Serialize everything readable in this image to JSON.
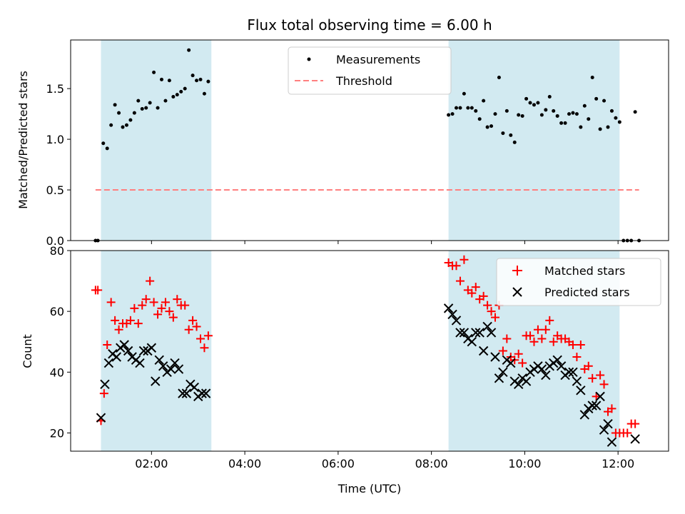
{
  "chart_data": {
    "title": "Flux total observing time = 6.00 h",
    "xlabel": "Time (UTC)",
    "xticks": [
      "02:00",
      "04:00",
      "06:00",
      "08:00",
      "10:00",
      "12:00"
    ],
    "xlim": [
      "00:16",
      "13:05"
    ],
    "observing_windows": [
      [
        "00:55",
        "03:17"
      ],
      [
        "08:22",
        "12:02"
      ]
    ],
    "colors": {
      "window": "#add8e6",
      "measurements": "#000000",
      "threshold": "#ff7f7f",
      "matched": "#ff0000",
      "predicted": "#000000"
    },
    "panels": [
      {
        "type": "scatter",
        "ylabel": "Matched/Predicted stars",
        "ylim": [
          0.0,
          1.98
        ],
        "yticks": [
          "0.0",
          "0.5",
          "1.0",
          "1.5"
        ],
        "legend_position": "top-center",
        "legend": [
          "Measurements",
          "Threshold"
        ],
        "threshold": {
          "value": 0.5,
          "x_range": [
            "00:48",
            "12:27"
          ]
        },
        "measurements": [
          [
            "00:48",
            0.0
          ],
          [
            "00:51",
            0.0
          ],
          [
            "00:58",
            0.96
          ],
          [
            "01:03",
            0.91
          ],
          [
            "01:08",
            1.14
          ],
          [
            "01:13",
            1.34
          ],
          [
            "01:18",
            1.26
          ],
          [
            "01:23",
            1.12
          ],
          [
            "01:28",
            1.14
          ],
          [
            "01:33",
            1.19
          ],
          [
            "01:38",
            1.26
          ],
          [
            "01:43",
            1.38
          ],
          [
            "01:48",
            1.3
          ],
          [
            "01:53",
            1.31
          ],
          [
            "01:58",
            1.36
          ],
          [
            "02:03",
            1.66
          ],
          [
            "02:08",
            1.31
          ],
          [
            "02:13",
            1.59
          ],
          [
            "02:18",
            1.38
          ],
          [
            "02:23",
            1.58
          ],
          [
            "02:28",
            1.42
          ],
          [
            "02:33",
            1.44
          ],
          [
            "02:38",
            1.47
          ],
          [
            "02:43",
            1.5
          ],
          [
            "02:48",
            1.88
          ],
          [
            "02:53",
            1.63
          ],
          [
            "02:58",
            1.58
          ],
          [
            "03:03",
            1.59
          ],
          [
            "03:08",
            1.45
          ],
          [
            "03:13",
            1.57
          ],
          [
            "08:22",
            1.24
          ],
          [
            "08:27",
            1.25
          ],
          [
            "08:32",
            1.31
          ],
          [
            "08:37",
            1.31
          ],
          [
            "08:42",
            1.45
          ],
          [
            "08:47",
            1.31
          ],
          [
            "08:52",
            1.31
          ],
          [
            "08:57",
            1.28
          ],
          [
            "09:02",
            1.2
          ],
          [
            "09:07",
            1.38
          ],
          [
            "09:12",
            1.12
          ],
          [
            "09:17",
            1.13
          ],
          [
            "09:22",
            1.25
          ],
          [
            "09:27",
            1.61
          ],
          [
            "09:32",
            1.06
          ],
          [
            "09:37",
            1.28
          ],
          [
            "09:42",
            1.04
          ],
          [
            "09:47",
            0.97
          ],
          [
            "09:52",
            1.24
          ],
          [
            "09:57",
            1.23
          ],
          [
            "10:02",
            1.4
          ],
          [
            "10:07",
            1.36
          ],
          [
            "10:12",
            1.34
          ],
          [
            "10:17",
            1.36
          ],
          [
            "10:22",
            1.24
          ],
          [
            "10:27",
            1.29
          ],
          [
            "10:32",
            1.42
          ],
          [
            "10:37",
            1.28
          ],
          [
            "10:42",
            1.23
          ],
          [
            "10:47",
            1.16
          ],
          [
            "10:52",
            1.16
          ],
          [
            "10:57",
            1.25
          ],
          [
            "11:02",
            1.26
          ],
          [
            "11:07",
            1.25
          ],
          [
            "11:12",
            1.12
          ],
          [
            "11:17",
            1.33
          ],
          [
            "11:22",
            1.2
          ],
          [
            "11:27",
            1.61
          ],
          [
            "11:32",
            1.4
          ],
          [
            "11:37",
            1.1
          ],
          [
            "11:42",
            1.38
          ],
          [
            "11:47",
            1.12
          ],
          [
            "11:52",
            1.28
          ],
          [
            "11:57",
            1.21
          ],
          [
            "12:02",
            1.17
          ],
          [
            "12:07",
            0.0
          ],
          [
            "12:12",
            0.0
          ],
          [
            "12:17",
            0.0
          ],
          [
            "12:22",
            1.27
          ],
          [
            "12:27",
            0.0
          ]
        ]
      },
      {
        "type": "scatter",
        "ylabel": "Count",
        "ylim": [
          14,
          80
        ],
        "yticks": [
          "20",
          "40",
          "60",
          "80"
        ],
        "legend_position": "top-right",
        "legend": [
          "Matched stars",
          "Predicted stars"
        ],
        "matched_stars": [
          [
            "00:48",
            67
          ],
          [
            "00:51",
            67
          ],
          [
            "00:55",
            24
          ],
          [
            "00:59",
            33
          ],
          [
            "01:03",
            49
          ],
          [
            "01:08",
            63
          ],
          [
            "01:13",
            57
          ],
          [
            "01:18",
            54
          ],
          [
            "01:23",
            56
          ],
          [
            "01:28",
            56
          ],
          [
            "01:33",
            57
          ],
          [
            "01:38",
            61
          ],
          [
            "01:43",
            56
          ],
          [
            "01:48",
            62
          ],
          [
            "01:53",
            64
          ],
          [
            "01:58",
            70
          ],
          [
            "02:03",
            63
          ],
          [
            "02:08",
            59
          ],
          [
            "02:13",
            61
          ],
          [
            "02:18",
            63
          ],
          [
            "02:23",
            60
          ],
          [
            "02:28",
            58
          ],
          [
            "02:33",
            64
          ],
          [
            "02:38",
            62
          ],
          [
            "02:43",
            62
          ],
          [
            "02:48",
            54
          ],
          [
            "02:53",
            57
          ],
          [
            "02:58",
            55
          ],
          [
            "03:03",
            51
          ],
          [
            "03:08",
            48
          ],
          [
            "03:13",
            52
          ],
          [
            "08:22",
            76
          ],
          [
            "08:27",
            75
          ],
          [
            "08:32",
            75
          ],
          [
            "08:37",
            70
          ],
          [
            "08:42",
            77
          ],
          [
            "08:47",
            67
          ],
          [
            "08:52",
            66
          ],
          [
            "08:57",
            68
          ],
          [
            "09:02",
            64
          ],
          [
            "09:07",
            65
          ],
          [
            "09:12",
            62
          ],
          [
            "09:17",
            60
          ],
          [
            "09:22",
            58
          ],
          [
            "09:27",
            62
          ],
          [
            "09:32",
            47
          ],
          [
            "09:37",
            51
          ],
          [
            "09:42",
            45
          ],
          [
            "09:47",
            44
          ],
          [
            "09:52",
            46
          ],
          [
            "09:57",
            43
          ],
          [
            "10:02",
            52
          ],
          [
            "10:07",
            52
          ],
          [
            "10:12",
            50
          ],
          [
            "10:17",
            54
          ],
          [
            "10:22",
            51
          ],
          [
            "10:27",
            54
          ],
          [
            "10:32",
            57
          ],
          [
            "10:37",
            50
          ],
          [
            "10:42",
            52
          ],
          [
            "10:47",
            51
          ],
          [
            "10:52",
            51
          ],
          [
            "10:57",
            50
          ],
          [
            "11:02",
            49
          ],
          [
            "11:07",
            45
          ],
          [
            "11:12",
            49
          ],
          [
            "11:17",
            41
          ],
          [
            "11:22",
            42
          ],
          [
            "11:27",
            38
          ],
          [
            "11:32",
            32
          ],
          [
            "11:37",
            39
          ],
          [
            "11:42",
            36
          ],
          [
            "11:47",
            27
          ],
          [
            "11:52",
            28
          ],
          [
            "11:57",
            20
          ],
          [
            "12:02",
            20
          ],
          [
            "12:07",
            20
          ],
          [
            "12:12",
            20
          ],
          [
            "12:17",
            23
          ],
          [
            "12:22",
            23
          ]
        ],
        "predicted_stars": [
          [
            "00:55",
            25
          ],
          [
            "01:00",
            36
          ],
          [
            "01:05",
            43
          ],
          [
            "01:10",
            46
          ],
          [
            "01:15",
            45
          ],
          [
            "01:20",
            48
          ],
          [
            "01:25",
            49
          ],
          [
            "01:30",
            47
          ],
          [
            "01:35",
            45
          ],
          [
            "01:40",
            44
          ],
          [
            "01:45",
            43
          ],
          [
            "01:50",
            47
          ],
          [
            "01:55",
            47
          ],
          [
            "02:00",
            48
          ],
          [
            "02:05",
            37
          ],
          [
            "02:10",
            44
          ],
          [
            "02:15",
            42
          ],
          [
            "02:20",
            40
          ],
          [
            "02:25",
            41
          ],
          [
            "02:30",
            43
          ],
          [
            "02:35",
            41
          ],
          [
            "02:40",
            33
          ],
          [
            "02:45",
            33
          ],
          [
            "02:50",
            36
          ],
          [
            "02:55",
            35
          ],
          [
            "03:00",
            32
          ],
          [
            "03:05",
            33
          ],
          [
            "03:10",
            33
          ],
          [
            "08:22",
            61
          ],
          [
            "08:27",
            59
          ],
          [
            "08:32",
            57
          ],
          [
            "08:37",
            53
          ],
          [
            "08:42",
            53
          ],
          [
            "08:47",
            51
          ],
          [
            "08:52",
            50
          ],
          [
            "08:57",
            53
          ],
          [
            "09:02",
            53
          ],
          [
            "09:07",
            47
          ],
          [
            "09:12",
            55
          ],
          [
            "09:17",
            53
          ],
          [
            "09:22",
            45
          ],
          [
            "09:27",
            38
          ],
          [
            "09:32",
            40
          ],
          [
            "09:37",
            44
          ],
          [
            "09:42",
            43
          ],
          [
            "09:47",
            37
          ],
          [
            "09:52",
            36
          ],
          [
            "09:57",
            38
          ],
          [
            "10:02",
            37
          ],
          [
            "10:07",
            40
          ],
          [
            "10:12",
            41
          ],
          [
            "10:17",
            42
          ],
          [
            "10:22",
            41
          ],
          [
            "10:27",
            39
          ],
          [
            "10:32",
            42
          ],
          [
            "10:37",
            43
          ],
          [
            "10:42",
            44
          ],
          [
            "10:47",
            42
          ],
          [
            "10:52",
            39
          ],
          [
            "10:57",
            40
          ],
          [
            "11:02",
            40
          ],
          [
            "11:07",
            37
          ],
          [
            "11:12",
            34
          ],
          [
            "11:17",
            26
          ],
          [
            "11:22",
            28
          ],
          [
            "11:27",
            29
          ],
          [
            "11:32",
            29
          ],
          [
            "11:37",
            32
          ],
          [
            "11:42",
            21
          ],
          [
            "11:47",
            23
          ],
          [
            "11:52",
            17
          ],
          [
            "12:22",
            18
          ]
        ]
      }
    ]
  }
}
